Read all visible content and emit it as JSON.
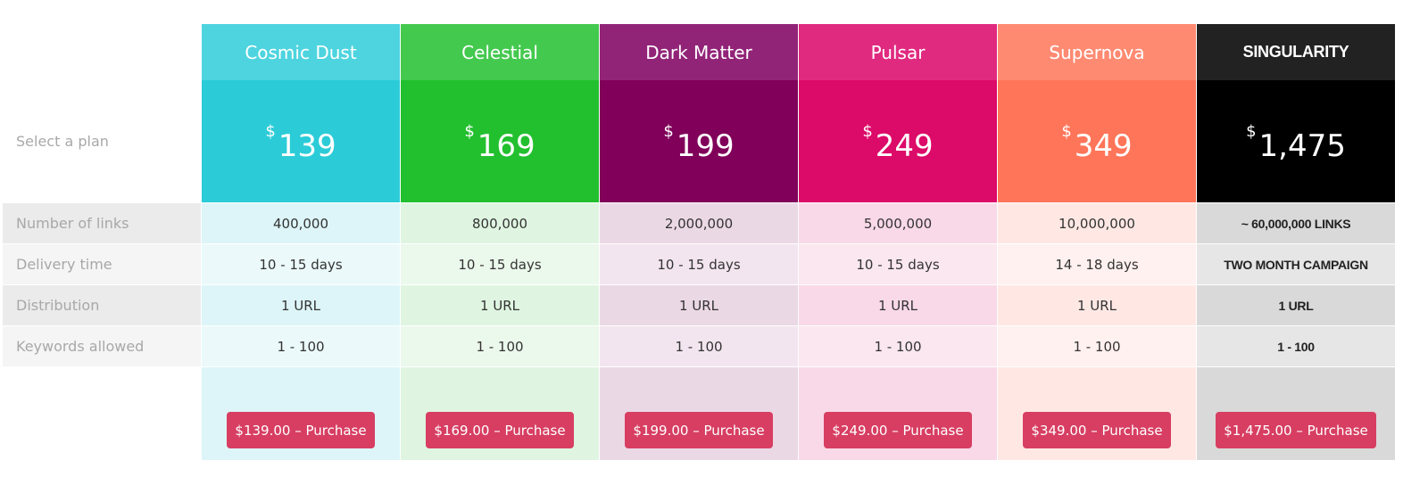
{
  "select_label": "Select a plan",
  "row_labels": [
    "Number of links",
    "Delivery time",
    "Distribution",
    "Keywords allowed"
  ],
  "plans": [
    {
      "name": "Cosmic Dust",
      "currency": "$",
      "price": "139",
      "features": [
        "400,000",
        "10 - 15 days",
        "1 URL",
        "1 - 100"
      ],
      "button": "$139.00 – Purchase",
      "colors": {
        "header": "#4dd4df",
        "price": "#2bccd8",
        "row_odd": "#ddf5f8",
        "row_even": "#ebf9fa"
      }
    },
    {
      "name": "Celestial",
      "currency": "$",
      "price": "169",
      "features": [
        "800,000",
        "10 - 15 days",
        "1 URL",
        "1 - 100"
      ],
      "button": "$169.00 – Purchase",
      "colors": {
        "header": "#44c94f",
        "price": "#22c02e",
        "row_odd": "#dff5e1",
        "row_even": "#ebf8ec"
      }
    },
    {
      "name": "Dark Matter",
      "currency": "$",
      "price": "199",
      "features": [
        "2,000,000",
        "10 - 15 days",
        "1 URL",
        "1 - 100"
      ],
      "button": "$199.00 – Purchase",
      "colors": {
        "header": "#922478",
        "price": "#80005a",
        "row_odd": "#ebd8e5",
        "row_even": "#f3e5ef"
      }
    },
    {
      "name": "Pulsar",
      "currency": "$",
      "price": "249",
      "features": [
        "5,000,000",
        "10 - 15 days",
        "1 URL",
        "1 - 100"
      ],
      "button": "$249.00 – Purchase",
      "colors": {
        "header": "#e02a80",
        "price": "#dc0a68",
        "row_odd": "#f9d9e7",
        "row_even": "#fbe7ef"
      }
    },
    {
      "name": "Supernova",
      "currency": "$",
      "price": "349",
      "features": [
        "10,000,000",
        "14 - 18 days",
        "1 URL",
        "1 - 100"
      ],
      "button": "$349.00 – Purchase",
      "colors": {
        "header": "#ff8a72",
        "price": "#ff7559",
        "row_odd": "#ffe8e4",
        "row_even": "#fff1ef"
      }
    },
    {
      "name": "SINGULARITY",
      "currency": "$",
      "price": "1,475",
      "features": [
        "~ 60,000,000 LINKS",
        "TWO MONTH CAMPAIGN",
        "1 URL",
        "1 - 100"
      ],
      "button": "$1,475.00 – Purchase",
      "colors": {
        "header": "#222222",
        "price": "#000000",
        "row_odd": "#d9d9d9",
        "row_even": "#e6e6e6"
      }
    }
  ],
  "colors": {
    "button": "#d73e62",
    "label_odd": "#ebebeb",
    "label_even": "#f5f5f5"
  }
}
